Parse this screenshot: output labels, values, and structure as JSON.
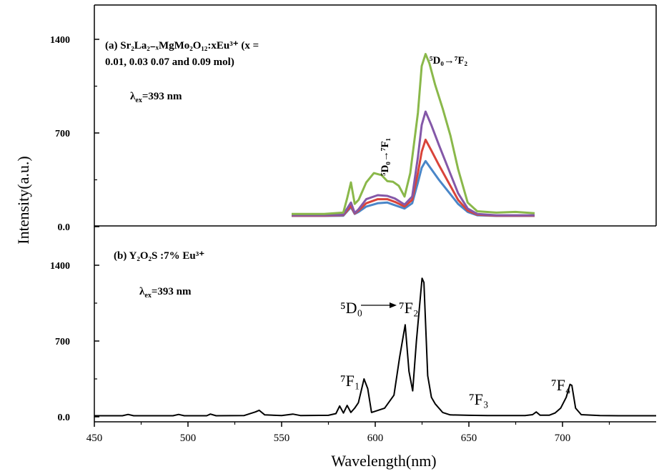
{
  "chart_data": [
    {
      "panel": "a",
      "type": "line",
      "title": "(a) Sr₂La₂₋ₓMgMo₂O₁₂:xEu³⁺ (x =",
      "title_line2": "0.01, 0.03 0.07 and 0.09 mol)",
      "excitation_label": "λ",
      "excitation_sub": "ex",
      "excitation_value": "=393 nm",
      "ylim": [
        0,
        1400
      ],
      "yticks": [
        "1400",
        "700",
        "0.0"
      ],
      "xlim": [
        553,
        680
      ],
      "annotations": {
        "f1_label": "⁵D₀→⁷F₁",
        "f2_label": "⁵D₀→⁷F₂"
      },
      "series": [
        {
          "color": "#4a86c8",
          "x": [
            553,
            570,
            580,
            584,
            586,
            588,
            592,
            598,
            603,
            607,
            612,
            616,
            619,
            621,
            623,
            626,
            630,
            635,
            640,
            645,
            650,
            660,
            670,
            680
          ],
          "y": [
            80,
            80,
            82,
            145,
            95,
            110,
            150,
            175,
            180,
            160,
            135,
            175,
            330,
            440,
            490,
            430,
            350,
            260,
            170,
            110,
            85,
            80,
            80,
            80
          ]
        },
        {
          "color": "#d9443a",
          "x": [
            553,
            570,
            580,
            584,
            586,
            588,
            592,
            598,
            603,
            607,
            612,
            616,
            619,
            621,
            623,
            626,
            630,
            635,
            640,
            645,
            650,
            660,
            670,
            680
          ],
          "y": [
            82,
            82,
            86,
            155,
            98,
            120,
            175,
            205,
            205,
            185,
            150,
            200,
            400,
            560,
            650,
            570,
            460,
            330,
            200,
            120,
            90,
            82,
            82,
            82
          ]
        },
        {
          "color": "#8458a8",
          "x": [
            553,
            570,
            580,
            584,
            586,
            588,
            592,
            598,
            603,
            607,
            612,
            616,
            619,
            621,
            623,
            626,
            630,
            635,
            640,
            645,
            650,
            660,
            670,
            680
          ],
          "y": [
            85,
            85,
            90,
            180,
            102,
            130,
            205,
            235,
            230,
            210,
            165,
            225,
            520,
            760,
            860,
            760,
            610,
            430,
            250,
            135,
            95,
            85,
            85,
            85
          ]
        },
        {
          "color": "#8ab84a",
          "x": [
            553,
            570,
            580,
            582,
            584,
            586,
            588,
            592,
            596,
            600,
            603,
            606,
            609,
            612,
            615,
            619,
            621,
            623,
            625,
            628,
            632,
            636,
            640,
            645,
            650,
            660,
            670,
            680
          ],
          "y": [
            95,
            95,
            105,
            210,
            330,
            170,
            200,
            330,
            400,
            385,
            340,
            335,
            305,
            225,
            400,
            850,
            1200,
            1290,
            1220,
            1060,
            880,
            680,
            430,
            180,
            115,
            105,
            110,
            100
          ]
        }
      ]
    },
    {
      "panel": "b",
      "type": "line",
      "title": "(b) Y₂O₂S :7% Eu³⁺",
      "excitation_label": "λ",
      "excitation_sub": "ex",
      "excitation_value": "=393 nm",
      "ylim": [
        0,
        1400
      ],
      "yticks": [
        "1400",
        "700",
        "0.0"
      ],
      "xlim": [
        450,
        750
      ],
      "xticks": [
        450,
        500,
        550,
        600,
        650,
        700
      ],
      "xlabel": "Wavelength(nm)",
      "ylabel": "Intensity(a.u.)",
      "annotations": {
        "d0_label": "⁵D₀",
        "f2_label": "⁷F₂",
        "f1_label": "⁷F₁",
        "f3_label": "⁷F₃",
        "f4_label": "⁷F₄"
      },
      "series": [
        {
          "color": "#000000",
          "x": [
            450,
            465,
            468,
            471,
            480,
            492,
            495,
            498,
            510,
            512,
            515,
            530,
            536,
            538,
            541,
            550,
            556,
            560,
            575,
            579,
            581,
            583,
            585,
            587,
            589,
            591,
            594,
            596,
            598,
            605,
            610,
            613,
            616,
            618,
            620,
            622,
            625,
            626,
            628,
            630,
            632,
            636,
            640,
            650,
            660,
            680,
            684,
            686,
            688,
            693,
            696,
            699,
            702,
            704,
            705,
            707,
            710,
            720,
            730,
            750
          ],
          "y": [
            10,
            10,
            22,
            10,
            10,
            10,
            22,
            10,
            10,
            25,
            10,
            12,
            45,
            60,
            18,
            12,
            25,
            12,
            14,
            30,
            100,
            35,
            105,
            40,
            80,
            130,
            350,
            260,
            40,
            80,
            200,
            550,
            850,
            420,
            240,
            700,
            1280,
            1240,
            380,
            180,
            120,
            40,
            18,
            14,
            12,
            12,
            20,
            45,
            15,
            15,
            35,
            80,
            180,
            300,
            290,
            80,
            20,
            12,
            10,
            10
          ]
        }
      ]
    }
  ]
}
